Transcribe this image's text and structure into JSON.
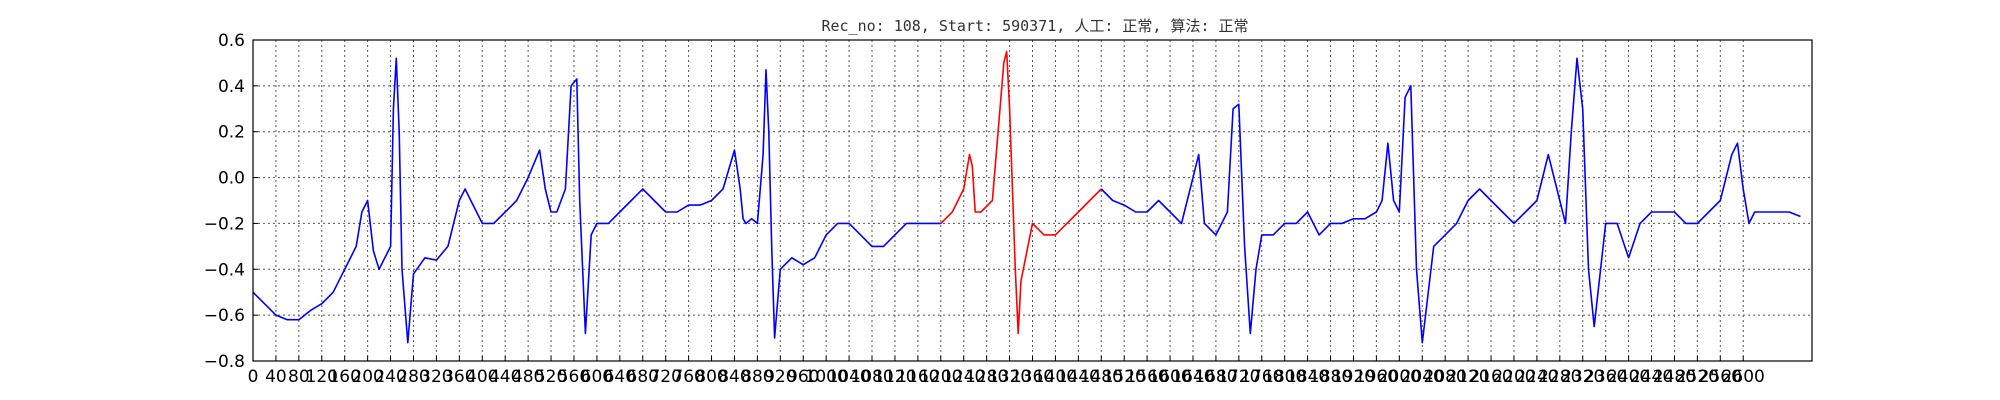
{
  "chart_data": {
    "type": "line",
    "title": "Rec_no: 108, Start: 590371, 人工: 正常, 算法: 正常",
    "xlabel": "",
    "ylabel": "",
    "xlim": [
      0,
      2720
    ],
    "ylim": [
      -0.8,
      0.6
    ],
    "grid": true,
    "x_ticks": [
      0,
      40,
      80,
      120,
      160,
      200,
      240,
      280,
      320,
      360,
      400,
      440,
      480,
      520,
      560,
      600,
      640,
      680,
      720,
      760,
      800,
      840,
      880,
      920,
      960,
      1000,
      1040,
      1080,
      1120,
      1160,
      1200,
      1240,
      1280,
      1320,
      1360,
      1400,
      1440,
      1480,
      1520,
      1560,
      1600,
      1640,
      1680,
      1720,
      1760,
      1800,
      1840,
      1880,
      1920,
      1960,
      2000,
      2040,
      2080,
      2120,
      2160,
      2200,
      2240,
      2280,
      2320,
      2360,
      2400,
      2440,
      2480,
      2520,
      2560,
      2600
    ],
    "y_ticks": [
      -0.8,
      -0.6,
      -0.4,
      -0.2,
      0.0,
      0.2,
      0.4,
      0.6
    ],
    "y_tick_labels": [
      "−0.8",
      "−0.6",
      "−0.4",
      "−0.2",
      "0.0",
      "0.2",
      "0.4",
      "0.6"
    ],
    "series": [
      {
        "color": "#0000ff",
        "segment": "before",
        "x": [
          0,
          20,
          40,
          60,
          80,
          100,
          120,
          140,
          160,
          180,
          190,
          200,
          210,
          220,
          230,
          240,
          245,
          250,
          255,
          260,
          270,
          280,
          300,
          320,
          340,
          360,
          370,
          380,
          400,
          420,
          440,
          460,
          480,
          500,
          510,
          520,
          530,
          545,
          555,
          565,
          570,
          580,
          590,
          600,
          620,
          640,
          660,
          680,
          700,
          720,
          740,
          760,
          780,
          800,
          820,
          840,
          850,
          855,
          860,
          870,
          880,
          890,
          895,
          900,
          905,
          910,
          920,
          940,
          960,
          980,
          1000,
          1020,
          1040,
          1060,
          1080,
          1100,
          1120,
          1140,
          1160,
          1180,
          1200
        ],
        "y": [
          -0.5,
          -0.55,
          -0.6,
          -0.62,
          -0.62,
          -0.58,
          -0.55,
          -0.5,
          -0.4,
          -0.3,
          -0.15,
          -0.1,
          -0.32,
          -0.4,
          -0.35,
          -0.3,
          0.3,
          0.52,
          0.2,
          -0.4,
          -0.72,
          -0.42,
          -0.35,
          -0.36,
          -0.3,
          -0.1,
          -0.05,
          -0.1,
          -0.2,
          -0.2,
          -0.15,
          -0.1,
          0.0,
          0.12,
          -0.05,
          -0.15,
          -0.15,
          -0.05,
          0.4,
          0.43,
          -0.1,
          -0.68,
          -0.25,
          -0.2,
          -0.2,
          -0.15,
          -0.1,
          -0.05,
          -0.1,
          -0.15,
          -0.15,
          -0.12,
          -0.12,
          -0.1,
          -0.05,
          0.12,
          -0.05,
          -0.18,
          -0.2,
          -0.18,
          -0.2,
          0.1,
          0.47,
          0.2,
          -0.3,
          -0.7,
          -0.4,
          -0.35,
          -0.38,
          -0.35,
          -0.25,
          -0.2,
          -0.2,
          -0.25,
          -0.3,
          -0.3,
          -0.25,
          -0.2,
          -0.2,
          -0.2,
          -0.2
        ]
      },
      {
        "color": "#ff0000",
        "segment": "highlighted",
        "x": [
          1200,
          1220,
          1240,
          1250,
          1255,
          1260,
          1270,
          1290,
          1300,
          1310,
          1315,
          1320,
          1330,
          1335,
          1340,
          1360,
          1380,
          1400,
          1420,
          1440,
          1460,
          1480
        ],
        "y": [
          -0.2,
          -0.15,
          -0.05,
          0.1,
          0.05,
          -0.15,
          -0.15,
          -0.1,
          0.2,
          0.5,
          0.55,
          0.3,
          -0.4,
          -0.68,
          -0.45,
          -0.2,
          -0.25,
          -0.25,
          -0.2,
          -0.15,
          -0.1,
          -0.05
        ]
      },
      {
        "color": "#0000ff",
        "segment": "after",
        "x": [
          1480,
          1500,
          1520,
          1540,
          1560,
          1580,
          1600,
          1620,
          1640,
          1650,
          1660,
          1680,
          1700,
          1710,
          1720,
          1730,
          1740,
          1750,
          1760,
          1780,
          1800,
          1820,
          1840,
          1860,
          1880,
          1900,
          1920,
          1940,
          1960,
          1970,
          1980,
          1990,
          2000,
          2010,
          2020,
          2030,
          2040,
          2060,
          2080,
          2100,
          2120,
          2140,
          2160,
          2180,
          2200,
          2220,
          2240,
          2260,
          2280,
          2290,
          2300,
          2310,
          2320,
          2330,
          2340,
          2360,
          2380,
          2400,
          2420,
          2440,
          2460,
          2480,
          2500,
          2520,
          2540,
          2560,
          2580,
          2590,
          2600,
          2610,
          2620,
          2640,
          2660,
          2680,
          2700
        ],
        "y": [
          -0.05,
          -0.1,
          -0.12,
          -0.15,
          -0.15,
          -0.1,
          -0.15,
          -0.2,
          0.0,
          0.1,
          -0.2,
          -0.25,
          -0.15,
          0.3,
          0.32,
          -0.3,
          -0.68,
          -0.4,
          -0.25,
          -0.25,
          -0.2,
          -0.2,
          -0.15,
          -0.25,
          -0.2,
          -0.2,
          -0.18,
          -0.18,
          -0.15,
          -0.1,
          0.15,
          -0.1,
          -0.15,
          0.35,
          0.4,
          -0.4,
          -0.72,
          -0.3,
          -0.25,
          -0.2,
          -0.1,
          -0.05,
          -0.1,
          -0.15,
          -0.2,
          -0.15,
          -0.1,
          0.1,
          -0.1,
          -0.2,
          0.2,
          0.52,
          0.3,
          -0.4,
          -0.65,
          -0.2,
          -0.2,
          -0.35,
          -0.2,
          -0.15,
          -0.15,
          -0.15,
          -0.2,
          -0.2,
          -0.15,
          -0.1,
          0.1,
          0.15,
          -0.05,
          -0.2,
          -0.15,
          -0.15,
          -0.15,
          -0.15,
          -0.17
        ]
      }
    ]
  }
}
